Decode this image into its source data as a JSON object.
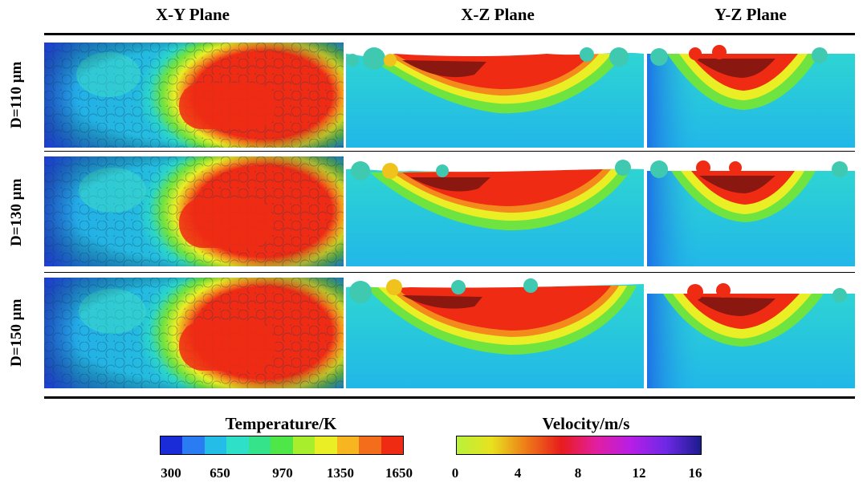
{
  "columns": [
    "X-Y Plane",
    "X-Z Plane",
    "Y-Z Plane"
  ],
  "rows": [
    "D=110 μm",
    "D=130 μm",
    "D=150 μm"
  ],
  "temperature_colorbar": {
    "title": "Temperature/K",
    "ticks": [
      "300",
      "650",
      "970",
      "1350",
      "1650"
    ],
    "colors": [
      "#1a2bd8",
      "#2a7cf2",
      "#23bde8",
      "#2fe0c8",
      "#35e38a",
      "#4fe648",
      "#a9ee2c",
      "#e9ee25",
      "#f7b51f",
      "#f46d1a",
      "#ef2b14"
    ]
  },
  "velocity_colorbar": {
    "title": "Velocity/m/s",
    "ticks": [
      "0",
      "4",
      "8",
      "12",
      "16"
    ],
    "colors": [
      "#b8f23c",
      "#e8e21e",
      "#ee7a18",
      "#e81c1c",
      "#e21ea0",
      "#b61ee6",
      "#6e28e6",
      "#1c1c8e"
    ]
  }
}
